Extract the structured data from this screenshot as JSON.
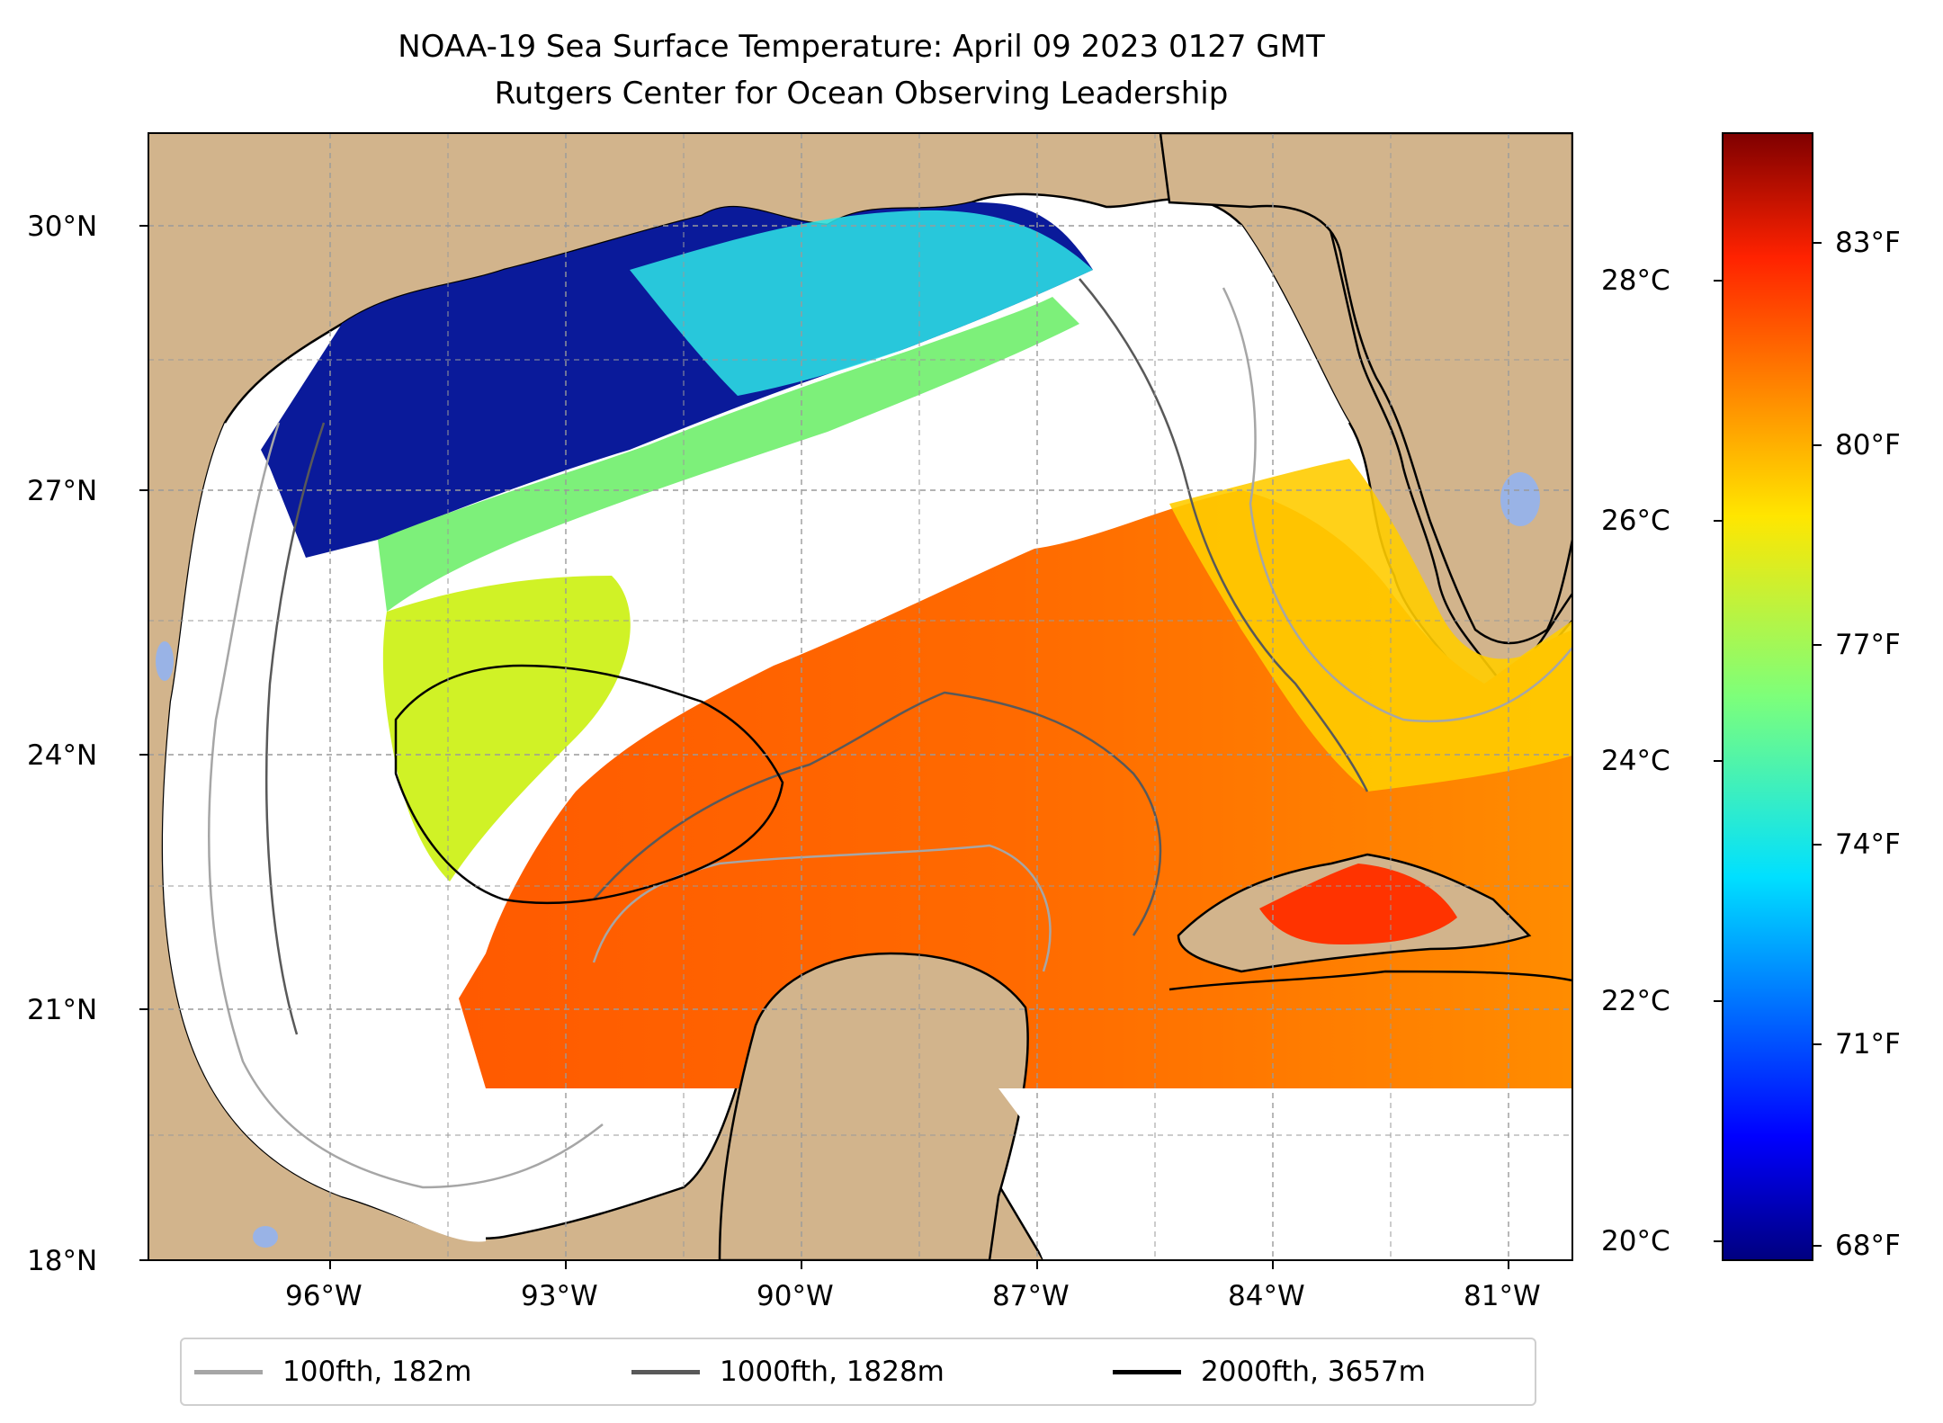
{
  "title": "NOAA-19 Sea Surface Temperature: April 09 2023 0127 GMT",
  "subtitle": "Rutgers Center for Ocean Observing Leadership",
  "map": {
    "lat_ticks": [
      "30°N",
      "27°N",
      "24°N",
      "21°N",
      "18°N"
    ],
    "lon_ticks": [
      "96°W",
      "93°W",
      "90°W",
      "87°W",
      "84°W",
      "81°W"
    ],
    "extent": {
      "lon_min": -98.3,
      "lon_max": -80.3,
      "lat_min": 18.0,
      "lat_max": 31.0
    },
    "colors": {
      "land": "#D2B48C",
      "lakes": "#99B3E6",
      "no_data": "#FFFFFF",
      "coastline": "#000000",
      "grid": "#B0B0B0"
    }
  },
  "colorbar": {
    "celsius_ticks": [
      "28°C",
      "26°C",
      "24°C",
      "22°C",
      "20°C"
    ],
    "fahrenheit_ticks": [
      "83°F",
      "80°F",
      "77°F",
      "74°F",
      "71°F",
      "68°F"
    ],
    "colormap": "jet"
  },
  "legend": [
    {
      "label": "100fth, 182m",
      "color": "#A6A6A6"
    },
    {
      "label": "1000fth, 1828m",
      "color": "#595959"
    },
    {
      "label": "2000fth, 3657m",
      "color": "#000000"
    }
  ]
}
